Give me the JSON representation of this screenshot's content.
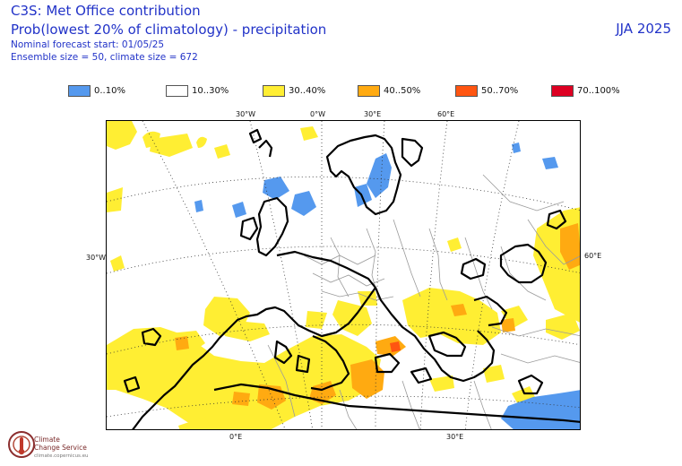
{
  "header": {
    "title": "C3S: Met Office contribution",
    "subtitle": "Prob(lowest 20% of climatology) - precipitation",
    "forecast_start": "Nominal forecast start: 01/05/25",
    "ensemble_info": "Ensemble size = 50, climate size = 672",
    "season": "JJA 2025"
  },
  "legend": [
    {
      "label": "0..10%",
      "color": "#5599ee"
    },
    {
      "label": "10..30%",
      "color": "#ffffff"
    },
    {
      "label": "30..40%",
      "color": "#ffee33"
    },
    {
      "label": "40..50%",
      "color": "#ffaa11"
    },
    {
      "label": "50..70%",
      "color": "#ff5511"
    },
    {
      "label": "70..100%",
      "color": "#dd0022"
    }
  ],
  "map_labels": {
    "lon_top": [
      "30°W",
      "0°W",
      "30°E",
      "60°E"
    ],
    "lat_left": "30°W",
    "lat_right": "60°E",
    "lon_bottom": [
      "0°E",
      "30°E"
    ]
  },
  "logo": {
    "line1": "Climate",
    "line2": "Change Service",
    "url": "climate.copernicus.eu"
  }
}
